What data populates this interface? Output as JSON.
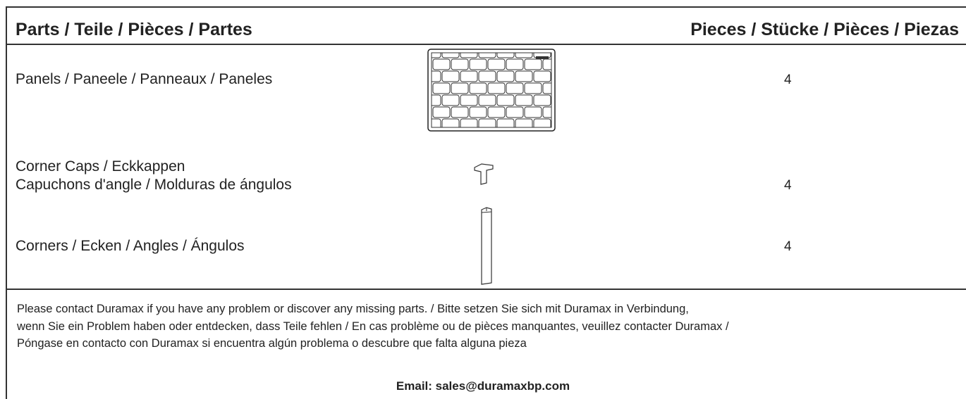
{
  "header": {
    "parts_title": "Parts / Teile / Pièces / Partes",
    "pieces_title": "Pieces / Stücke / Pièces / Piezas"
  },
  "rows": [
    {
      "label_lines": [
        "Panels / Paneele / Panneaux / Paneles"
      ],
      "count": 4
    },
    {
      "label_lines": [
        "Corner Caps / Eckkappen",
        "Capuchons d'angle / Molduras de ángulos"
      ],
      "count": 4
    },
    {
      "label_lines": [
        "Corners / Ecken / Angles / Ángulos"
      ],
      "count": 4
    }
  ],
  "footer": {
    "notice_lines": [
      "Please contact Duramax if you have any problem or discover any missing parts. / Bitte setzen Sie sich mit Duramax in Verbindung,",
      "wenn Sie ein Problem haben oder entdecken, dass Teile fehlen / En cas problème ou de pièces manquantes, veuillez contacter Duramax /",
      "Póngase en contacto con Duramax si encuentra algún problema o descubre que falta alguna pieza"
    ],
    "email": "Email: sales@duramaxbp.com"
  }
}
